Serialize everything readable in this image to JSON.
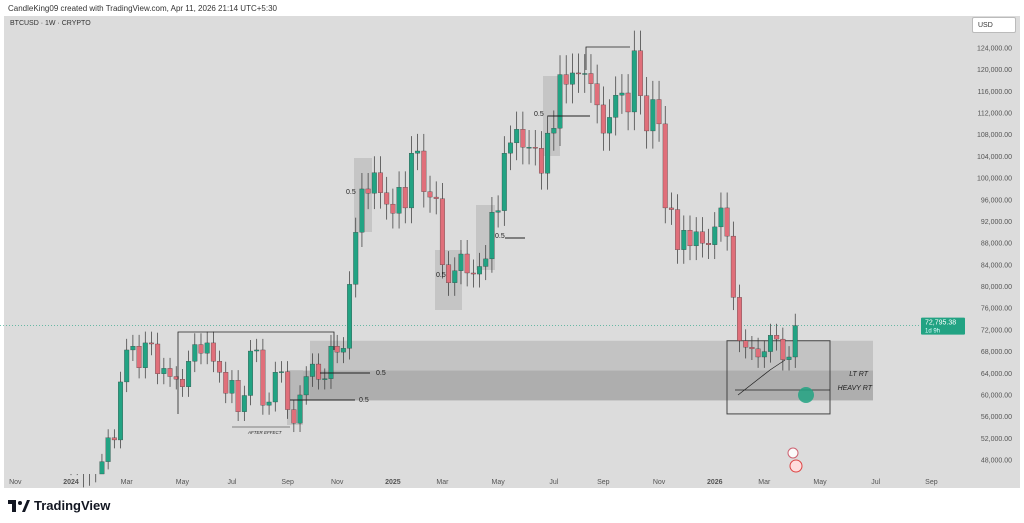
{
  "credit": "CandleKing09 created with TradingView.com, Apr 11, 2026 21:14 UTC+5:30",
  "symbol": "BTCUSD · 1W · CRYPTO",
  "currency_button": "USD",
  "brand": "TradingView",
  "price_tag": {
    "price": "72,795.38",
    "countdown": "1d 9h",
    "value": 72795.38
  },
  "colors": {
    "up": "#22a383",
    "down": "#e06f7a",
    "bg": "#dcdcdc",
    "accent": "#22a383"
  },
  "annotations": {
    "half": "0.5",
    "lt_rt": "LT RT",
    "heavy_rt": "HEAVY RT",
    "after_effect": "AFTER EFFECT"
  },
  "chart_data": {
    "type": "candlestick",
    "title": "BTCUSD · 1W · CRYPTO",
    "ylim": [
      44000,
      128000
    ],
    "y_ticks": [
      48000,
      52000,
      56000,
      60000,
      64000,
      68000,
      72000,
      76000,
      80000,
      84000,
      88000,
      92000,
      96000,
      100000,
      104000,
      108000,
      112000,
      116000,
      120000,
      124000
    ],
    "y_tick_labels": [
      "48,000.00",
      "52,000.00",
      "56,000.00",
      "60,000.00",
      "64,000.00",
      "68,000.00",
      "72,000.00",
      "76,000.00",
      "80,000.00",
      "84,000.00",
      "88,000.00",
      "92,000.00",
      "96,000.00",
      "100,000.00",
      "104,000.00",
      "108,000.00",
      "112,000.00",
      "116,000.00",
      "120,000.00",
      "124,000.00"
    ],
    "x_ticks": [
      {
        "label": "Nov",
        "week": -9
      },
      {
        "label": "2024",
        "week": 0
      },
      {
        "label": "Mar",
        "week": 9
      },
      {
        "label": "May",
        "week": 18
      },
      {
        "label": "Jul",
        "week": 26
      },
      {
        "label": "Sep",
        "week": 35
      },
      {
        "label": "Nov",
        "week": 43
      },
      {
        "label": "2025",
        "week": 52
      },
      {
        "label": "Mar",
        "week": 60
      },
      {
        "label": "May",
        "week": 69
      },
      {
        "label": "Jul",
        "week": 78
      },
      {
        "label": "Sep",
        "week": 86
      },
      {
        "label": "Nov",
        "week": 95
      },
      {
        "label": "2026",
        "week": 104
      },
      {
        "label": "Mar",
        "week": 112
      },
      {
        "label": "May",
        "week": 121
      },
      {
        "label": "Jul",
        "week": 130
      },
      {
        "label": "Sep",
        "week": 139
      }
    ],
    "weekly_closes_k": [
      43.9,
      41.7,
      41.6,
      42.0,
      42.6,
      47.7,
      52.1,
      51.7,
      62.4,
      68.3,
      69.0,
      65.0,
      69.6,
      69.4,
      63.9,
      64.9,
      63.4,
      62.9,
      61.5,
      66.2,
      69.3,
      67.7,
      69.6,
      66.2,
      64.2,
      60.3,
      62.7,
      56.9,
      59.9,
      68.1,
      68.3,
      58.1,
      58.7,
      64.2,
      64.3,
      57.3,
      54.8,
      60.0,
      63.4,
      65.7,
      62.9,
      63.0,
      69.0,
      67.9,
      68.6,
      80.4,
      90.0,
      98.0,
      97.2,
      101.0,
      97.3,
      95.2,
      93.5,
      98.3,
      94.5,
      104.6,
      105.0,
      97.5,
      96.5,
      96.2,
      84.0,
      80.7,
      82.9,
      86.0,
      82.5,
      82.3,
      83.7,
      85.1,
      93.7,
      94.0,
      104.6,
      106.5,
      109.0,
      105.7,
      105.7,
      105.5,
      100.9,
      108.3,
      109.2,
      119.1,
      117.3,
      119.4,
      119.3,
      119.3,
      117.4,
      113.5,
      108.3,
      111.2,
      115.3,
      115.7,
      112.2,
      123.5,
      115.2,
      108.7,
      114.5,
      110.0,
      94.5,
      94.2,
      86.8,
      90.4,
      87.5,
      90.1,
      88.0,
      87.7,
      91.0,
      94.5,
      89.3,
      78.0,
      70.0,
      68.8,
      68.5,
      67.0,
      68.0,
      71.0,
      70.3,
      66.5,
      67.0,
      72.8
    ]
  }
}
